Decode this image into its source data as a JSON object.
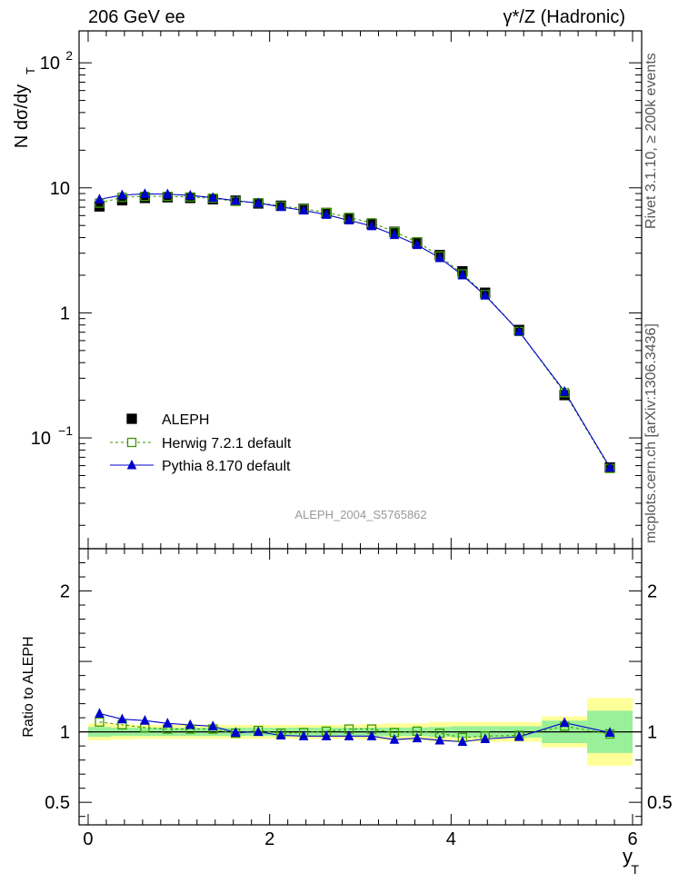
{
  "header": {
    "left_title": "206 GeV ee",
    "right_title": "γ*/Z (Hadronic)"
  },
  "side_labels": {
    "rivet": "Rivet 3.1.10, ≥ 200k events",
    "mcplots": "mcplots.cern.ch [arXiv:1306.3436]"
  },
  "analysis_id": "ALEPH_2004_S5765862",
  "colors": {
    "data": "#000000",
    "herwig": "#3a9a00",
    "pythia": "#0000cc",
    "band_inner": "#99f099",
    "band_outer": "#ffff99"
  },
  "chart_data": [
    {
      "type": "scatter",
      "title": "206 GeV ee",
      "ylabel": "N dσ/dy_T",
      "yscale": "log",
      "ylim": [
        0.013,
        180
      ],
      "y_ticks": [
        "10^2",
        "10",
        "1",
        "10^-1"
      ],
      "legend_position": "bottom-left",
      "x": [
        0.125,
        0.375,
        0.625,
        0.875,
        1.125,
        1.375,
        1.625,
        1.875,
        2.125,
        2.375,
        2.625,
        2.875,
        3.125,
        3.375,
        3.625,
        3.875,
        4.125,
        4.375,
        4.75,
        5.25,
        5.75
      ],
      "series": [
        {
          "name": "ALEPH",
          "marker": "filled-square",
          "values": [
            7.1,
            7.95,
            8.3,
            8.4,
            8.3,
            8.1,
            7.9,
            7.5,
            7.2,
            6.8,
            6.3,
            5.7,
            5.15,
            4.45,
            3.65,
            2.9,
            2.15,
            1.45,
            0.73,
            0.22,
            0.058
          ]
        },
        {
          "name": "Herwig 7.2.1 default",
          "marker": "open-square",
          "line": "dashed",
          "values": [
            7.55,
            8.4,
            8.55,
            8.55,
            8.45,
            8.25,
            7.8,
            7.6,
            7.15,
            6.8,
            6.35,
            5.8,
            5.25,
            4.45,
            3.7,
            2.85,
            2.05,
            1.4,
            0.71,
            0.23,
            0.057
          ]
        },
        {
          "name": "Pythia 8.170 default",
          "marker": "filled-triangle",
          "line": "solid",
          "values": [
            8.1,
            8.75,
            8.95,
            8.9,
            8.7,
            8.35,
            7.9,
            7.55,
            7.05,
            6.6,
            6.1,
            5.5,
            4.95,
            4.2,
            3.5,
            2.75,
            2.0,
            1.38,
            0.71,
            0.235,
            0.058
          ]
        }
      ]
    },
    {
      "type": "line",
      "ylabel": "Ratio to ALEPH",
      "xlabel": "y_T",
      "xlim": [
        -0.1,
        6.1
      ],
      "ylim": [
        0.34,
        2.3
      ],
      "x_ticks": [
        0,
        2,
        4,
        6
      ],
      "y_ticks": [
        0.5,
        1,
        2
      ],
      "x": [
        0.125,
        0.375,
        0.625,
        0.875,
        1.125,
        1.375,
        1.625,
        1.875,
        2.125,
        2.375,
        2.625,
        2.875,
        3.125,
        3.375,
        3.625,
        3.875,
        4.125,
        4.375,
        4.75,
        5.25,
        5.75
      ],
      "bins": [
        [
          0,
          0.25
        ],
        [
          0.25,
          0.5
        ],
        [
          0.5,
          0.75
        ],
        [
          0.75,
          1.0
        ],
        [
          1.0,
          1.25
        ],
        [
          1.25,
          1.5
        ],
        [
          1.5,
          1.75
        ],
        [
          1.75,
          2.0
        ],
        [
          2.0,
          2.25
        ],
        [
          2.25,
          2.5
        ],
        [
          2.5,
          2.75
        ],
        [
          2.75,
          3.0
        ],
        [
          3.0,
          3.25
        ],
        [
          3.25,
          3.5
        ],
        [
          3.5,
          3.75
        ],
        [
          3.75,
          4.0
        ],
        [
          4.0,
          4.25
        ],
        [
          4.25,
          4.5
        ],
        [
          4.5,
          5.0
        ],
        [
          5.0,
          5.5
        ],
        [
          5.5,
          6.0
        ]
      ],
      "band_inner": [
        0.035,
        0.03,
        0.03,
        0.03,
        0.03,
        0.03,
        0.03,
        0.03,
        0.03,
        0.03,
        0.03,
        0.03,
        0.03,
        0.03,
        0.03,
        0.035,
        0.04,
        0.04,
        0.04,
        0.08,
        0.15
      ],
      "band_outer": [
        0.06,
        0.055,
        0.05,
        0.05,
        0.05,
        0.05,
        0.05,
        0.05,
        0.05,
        0.05,
        0.05,
        0.05,
        0.055,
        0.06,
        0.06,
        0.07,
        0.07,
        0.07,
        0.07,
        0.11,
        0.24
      ],
      "series": [
        {
          "name": "Herwig 7.2.1 default",
          "marker": "open-square",
          "line": "dashed",
          "values": [
            1.07,
            1.05,
            1.03,
            1.02,
            1.02,
            1.02,
            0.99,
            1.01,
            0.99,
            0.995,
            1.005,
            1.02,
            1.02,
            0.995,
            1.005,
            0.99,
            0.96,
            0.97,
            0.975,
            1.04,
            0.985
          ]
        },
        {
          "name": "Pythia 8.170 default",
          "marker": "filled-triangle",
          "line": "solid",
          "values": [
            1.13,
            1.09,
            1.08,
            1.06,
            1.05,
            1.04,
            0.995,
            1.0,
            0.975,
            0.97,
            0.97,
            0.97,
            0.97,
            0.945,
            0.955,
            0.94,
            0.93,
            0.95,
            0.965,
            1.065,
            0.995
          ]
        }
      ]
    }
  ]
}
